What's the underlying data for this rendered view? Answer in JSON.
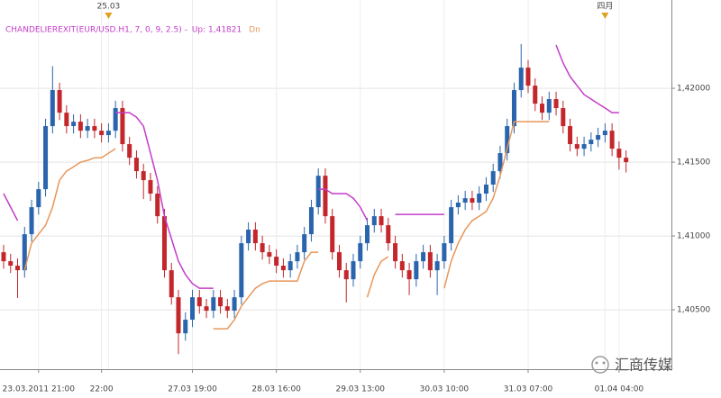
{
  "chart_data": {
    "type": "candlestick",
    "title": "CHANDELIEREXIT(EUR/USD.H1, 7, 0, 9, 2.5) -",
    "up_color": "#2a64ad",
    "down_color": "#c3262b",
    "grid": true,
    "ylim": [
      1.40098,
      1.42598
    ],
    "yticks": [
      {
        "value": 1.405,
        "label": "1,40500"
      },
      {
        "value": 1.41,
        "label": "1,41000"
      },
      {
        "value": 1.415,
        "label": "1,41500"
      },
      {
        "value": 1.42,
        "label": "1,42000"
      }
    ],
    "categories": [
      null,
      null,
      null,
      null,
      null,
      "23.03.2011 21:00",
      null,
      null,
      null,
      null,
      null,
      null,
      null,
      null,
      "22:00",
      null,
      null,
      null,
      null,
      null,
      null,
      null,
      null,
      null,
      null,
      null,
      null,
      "27.03 19:00",
      null,
      null,
      null,
      null,
      null,
      null,
      null,
      null,
      null,
      null,
      null,
      "28.03 16:00",
      null,
      null,
      null,
      null,
      null,
      null,
      null,
      null,
      null,
      null,
      null,
      "29.03 13:00",
      null,
      null,
      null,
      null,
      null,
      null,
      null,
      null,
      null,
      null,
      null,
      "30.03 10:00",
      null,
      null,
      null,
      null,
      null,
      null,
      null,
      null,
      null,
      null,
      null,
      "31.03 07:00",
      null,
      null,
      null,
      null,
      null,
      null,
      null,
      null,
      null,
      null,
      null,
      null,
      "01.04 04:00",
      null
    ],
    "top_labels": [
      null,
      null,
      null,
      null,
      null,
      null,
      null,
      null,
      null,
      null,
      null,
      null,
      null,
      null,
      null,
      "25.03",
      null,
      null,
      null,
      null,
      null,
      null,
      null,
      null,
      null,
      null,
      null,
      null,
      null,
      null,
      null,
      null,
      null,
      null,
      null,
      null,
      null,
      null,
      null,
      null,
      null,
      null,
      null,
      null,
      null,
      null,
      null,
      null,
      null,
      null,
      null,
      null,
      null,
      null,
      null,
      null,
      null,
      null,
      null,
      null,
      null,
      null,
      null,
      null,
      null,
      null,
      null,
      null,
      null,
      null,
      null,
      null,
      null,
      null,
      null,
      null,
      null,
      null,
      null,
      null,
      null,
      null,
      null,
      null,
      null,
      null,
      "四月",
      null,
      null,
      null
    ],
    "open": [
      1.4089,
      1.40829,
      1.40799,
      1.40768,
      1.41012,
      1.41195,
      1.41317,
      1.41744,
      1.41988,
      1.41835,
      1.41744,
      1.41774,
      1.41713,
      1.41744,
      1.41713,
      1.41683,
      1.41713,
      1.41866,
      1.41622,
      1.4153,
      1.41439,
      1.41378,
      1.41287,
      1.41134,
      1.40768,
      1.40585,
      1.40341,
      1.40433,
      1.40585,
      1.40524,
      1.40494,
      1.40585,
      1.40524,
      1.40494,
      1.40585,
      1.40951,
      1.41043,
      1.40951,
      1.4089,
      1.4086,
      1.40799,
      1.40768,
      1.40829,
      1.4089,
      1.41012,
      1.41195,
      1.41408,
      1.41134,
      1.4089,
      1.40768,
      1.40707,
      1.40829,
      1.40951,
      1.41073,
      1.41134,
      1.41073,
      1.40951,
      1.40829,
      1.40768,
      1.40707,
      1.40829,
      1.4089,
      1.40768,
      1.40829,
      1.40951,
      1.41195,
      1.41226,
      1.41256,
      1.41226,
      1.41287,
      1.41348,
      1.41439,
      1.41561,
      1.41744,
      1.41988,
      1.4214,
      1.42018,
      1.41896,
      1.41835,
      1.41927,
      1.41866,
      1.41744,
      1.41622,
      1.41591,
      1.41622,
      1.41652,
      1.41683,
      1.41713,
      1.41591,
      1.4153
    ],
    "high": [
      1.4094,
      1.40879,
      1.40849,
      1.41062,
      1.41245,
      1.41367,
      1.41794,
      1.4215,
      1.42038,
      1.41885,
      1.41824,
      1.41824,
      1.41794,
      1.41794,
      1.41763,
      1.41763,
      1.41916,
      1.41916,
      1.41672,
      1.4158,
      1.41489,
      1.41428,
      1.41337,
      1.41184,
      1.40818,
      1.40635,
      1.40483,
      1.40635,
      1.40635,
      1.40574,
      1.40635,
      1.40635,
      1.40574,
      1.40635,
      1.41001,
      1.41093,
      1.41093,
      1.41001,
      1.4094,
      1.4091,
      1.40849,
      1.40879,
      1.4094,
      1.41062,
      1.41245,
      1.41458,
      1.41458,
      1.41184,
      1.4094,
      1.40818,
      1.40879,
      1.41001,
      1.41123,
      1.41184,
      1.41184,
      1.41123,
      1.41001,
      1.40879,
      1.40818,
      1.40879,
      1.4094,
      1.4094,
      1.40879,
      1.41001,
      1.41245,
      1.41276,
      1.41306,
      1.41306,
      1.41337,
      1.41398,
      1.41489,
      1.41611,
      1.41794,
      1.42038,
      1.423,
      1.4219,
      1.42068,
      1.41946,
      1.41977,
      1.41977,
      1.41916,
      1.41794,
      1.41672,
      1.41672,
      1.41702,
      1.41733,
      1.41763,
      1.41763,
      1.41641,
      1.4158
    ],
    "low": [
      1.40779,
      1.40749,
      1.4058,
      1.40718,
      1.40962,
      1.41145,
      1.41267,
      1.41694,
      1.41785,
      1.41694,
      1.41694,
      1.41663,
      1.41663,
      1.41663,
      1.41633,
      1.41633,
      1.41663,
      1.41572,
      1.4148,
      1.41389,
      1.4125,
      1.41237,
      1.41084,
      1.40718,
      1.40535,
      1.402,
      1.40291,
      1.40383,
      1.40474,
      1.40444,
      1.40444,
      1.40474,
      1.40444,
      1.40444,
      1.40535,
      1.40901,
      1.40901,
      1.4084,
      1.4081,
      1.40749,
      1.40718,
      1.40718,
      1.40779,
      1.4084,
      1.40962,
      1.41145,
      1.41084,
      1.4084,
      1.40718,
      1.4055,
      1.40657,
      1.40779,
      1.40901,
      1.41023,
      1.41023,
      1.40901,
      1.40779,
      1.40718,
      1.406,
      1.40657,
      1.40779,
      1.40718,
      1.406,
      1.40779,
      1.40901,
      1.41145,
      1.41176,
      1.41176,
      1.41176,
      1.41237,
      1.41298,
      1.41389,
      1.41511,
      1.41694,
      1.41938,
      1.41968,
      1.41846,
      1.41785,
      1.41785,
      1.41816,
      1.41694,
      1.41572,
      1.41541,
      1.41541,
      1.41572,
      1.41602,
      1.41633,
      1.41541,
      1.4145,
      1.4143
    ],
    "close": [
      1.40829,
      1.40799,
      1.40768,
      1.41012,
      1.41195,
      1.41317,
      1.41744,
      1.41988,
      1.41835,
      1.41744,
      1.41774,
      1.41713,
      1.41744,
      1.41713,
      1.41683,
      1.41713,
      1.41866,
      1.41622,
      1.4153,
      1.41439,
      1.41378,
      1.41287,
      1.41134,
      1.40768,
      1.40585,
      1.40341,
      1.40433,
      1.40585,
      1.40524,
      1.40494,
      1.40585,
      1.40524,
      1.40494,
      1.40585,
      1.40951,
      1.41043,
      1.40951,
      1.4089,
      1.4086,
      1.40799,
      1.40768,
      1.40829,
      1.4089,
      1.41012,
      1.41195,
      1.41408,
      1.41134,
      1.4089,
      1.40768,
      1.40707,
      1.40829,
      1.40951,
      1.41073,
      1.41134,
      1.41073,
      1.40951,
      1.40829,
      1.40768,
      1.40707,
      1.40829,
      1.4089,
      1.40768,
      1.40829,
      1.40951,
      1.41195,
      1.41226,
      1.41256,
      1.41226,
      1.41287,
      1.41348,
      1.41439,
      1.41561,
      1.41744,
      1.41988,
      1.4214,
      1.42018,
      1.41896,
      1.41835,
      1.41927,
      1.41866,
      1.41744,
      1.41622,
      1.41591,
      1.41622,
      1.41652,
      1.41683,
      1.41713,
      1.41591,
      1.4153,
      1.415
    ],
    "lines": [
      {
        "name": "Up: 1,41821",
        "color": "#c43cc8",
        "values": [
          1.41287,
          1.41195,
          1.41104,
          null,
          null,
          null,
          null,
          null,
          null,
          null,
          null,
          null,
          null,
          null,
          null,
          null,
          1.41835,
          1.41835,
          1.41835,
          1.41805,
          1.41744,
          1.41561,
          1.41378,
          1.41134,
          1.40982,
          1.40829,
          1.40738,
          1.40677,
          1.40646,
          1.40646,
          1.40646,
          null,
          null,
          null,
          null,
          null,
          null,
          null,
          null,
          null,
          null,
          null,
          null,
          null,
          null,
          1.41317,
          1.41317,
          1.41287,
          1.41287,
          1.41287,
          1.41256,
          1.41195,
          1.41104,
          null,
          null,
          null,
          1.41146,
          1.41146,
          1.41146,
          1.41146,
          1.41146,
          1.41146,
          1.41146,
          1.41146,
          null,
          null,
          null,
          null,
          null,
          null,
          null,
          null,
          null,
          null,
          null,
          null,
          null,
          null,
          null,
          1.42293,
          1.42171,
          1.42079,
          1.42018,
          1.41957,
          1.41927,
          1.41896,
          1.41866,
          1.41835,
          1.41835,
          null
        ]
      },
      {
        "name": "Dn",
        "color": "#e8975a",
        "values": [
          null,
          null,
          null,
          1.40768,
          1.40951,
          1.41012,
          1.41073,
          1.41195,
          1.41378,
          1.41439,
          1.41469,
          1.415,
          1.41512,
          1.4153,
          1.4153,
          1.41561,
          1.41591,
          null,
          null,
          null,
          null,
          null,
          null,
          null,
          null,
          null,
          null,
          null,
          null,
          null,
          1.40372,
          1.40372,
          1.40372,
          1.40433,
          1.40524,
          1.40585,
          1.40646,
          1.40677,
          1.40695,
          1.40695,
          1.40695,
          1.40695,
          1.40695,
          1.40829,
          1.4089,
          1.4089,
          null,
          null,
          null,
          null,
          null,
          null,
          1.40585,
          1.40738,
          1.40829,
          1.4086,
          null,
          null,
          null,
          null,
          null,
          null,
          null,
          1.40646,
          1.40829,
          1.40951,
          1.41043,
          1.41104,
          1.41134,
          1.41165,
          1.41256,
          1.41408,
          1.41591,
          1.41774,
          1.41774,
          1.41774,
          1.41774,
          1.41774,
          1.41774,
          null,
          null,
          null,
          null,
          null,
          null,
          null,
          null,
          null,
          null,
          null
        ]
      }
    ]
  },
  "watermark": "汇商传媒"
}
